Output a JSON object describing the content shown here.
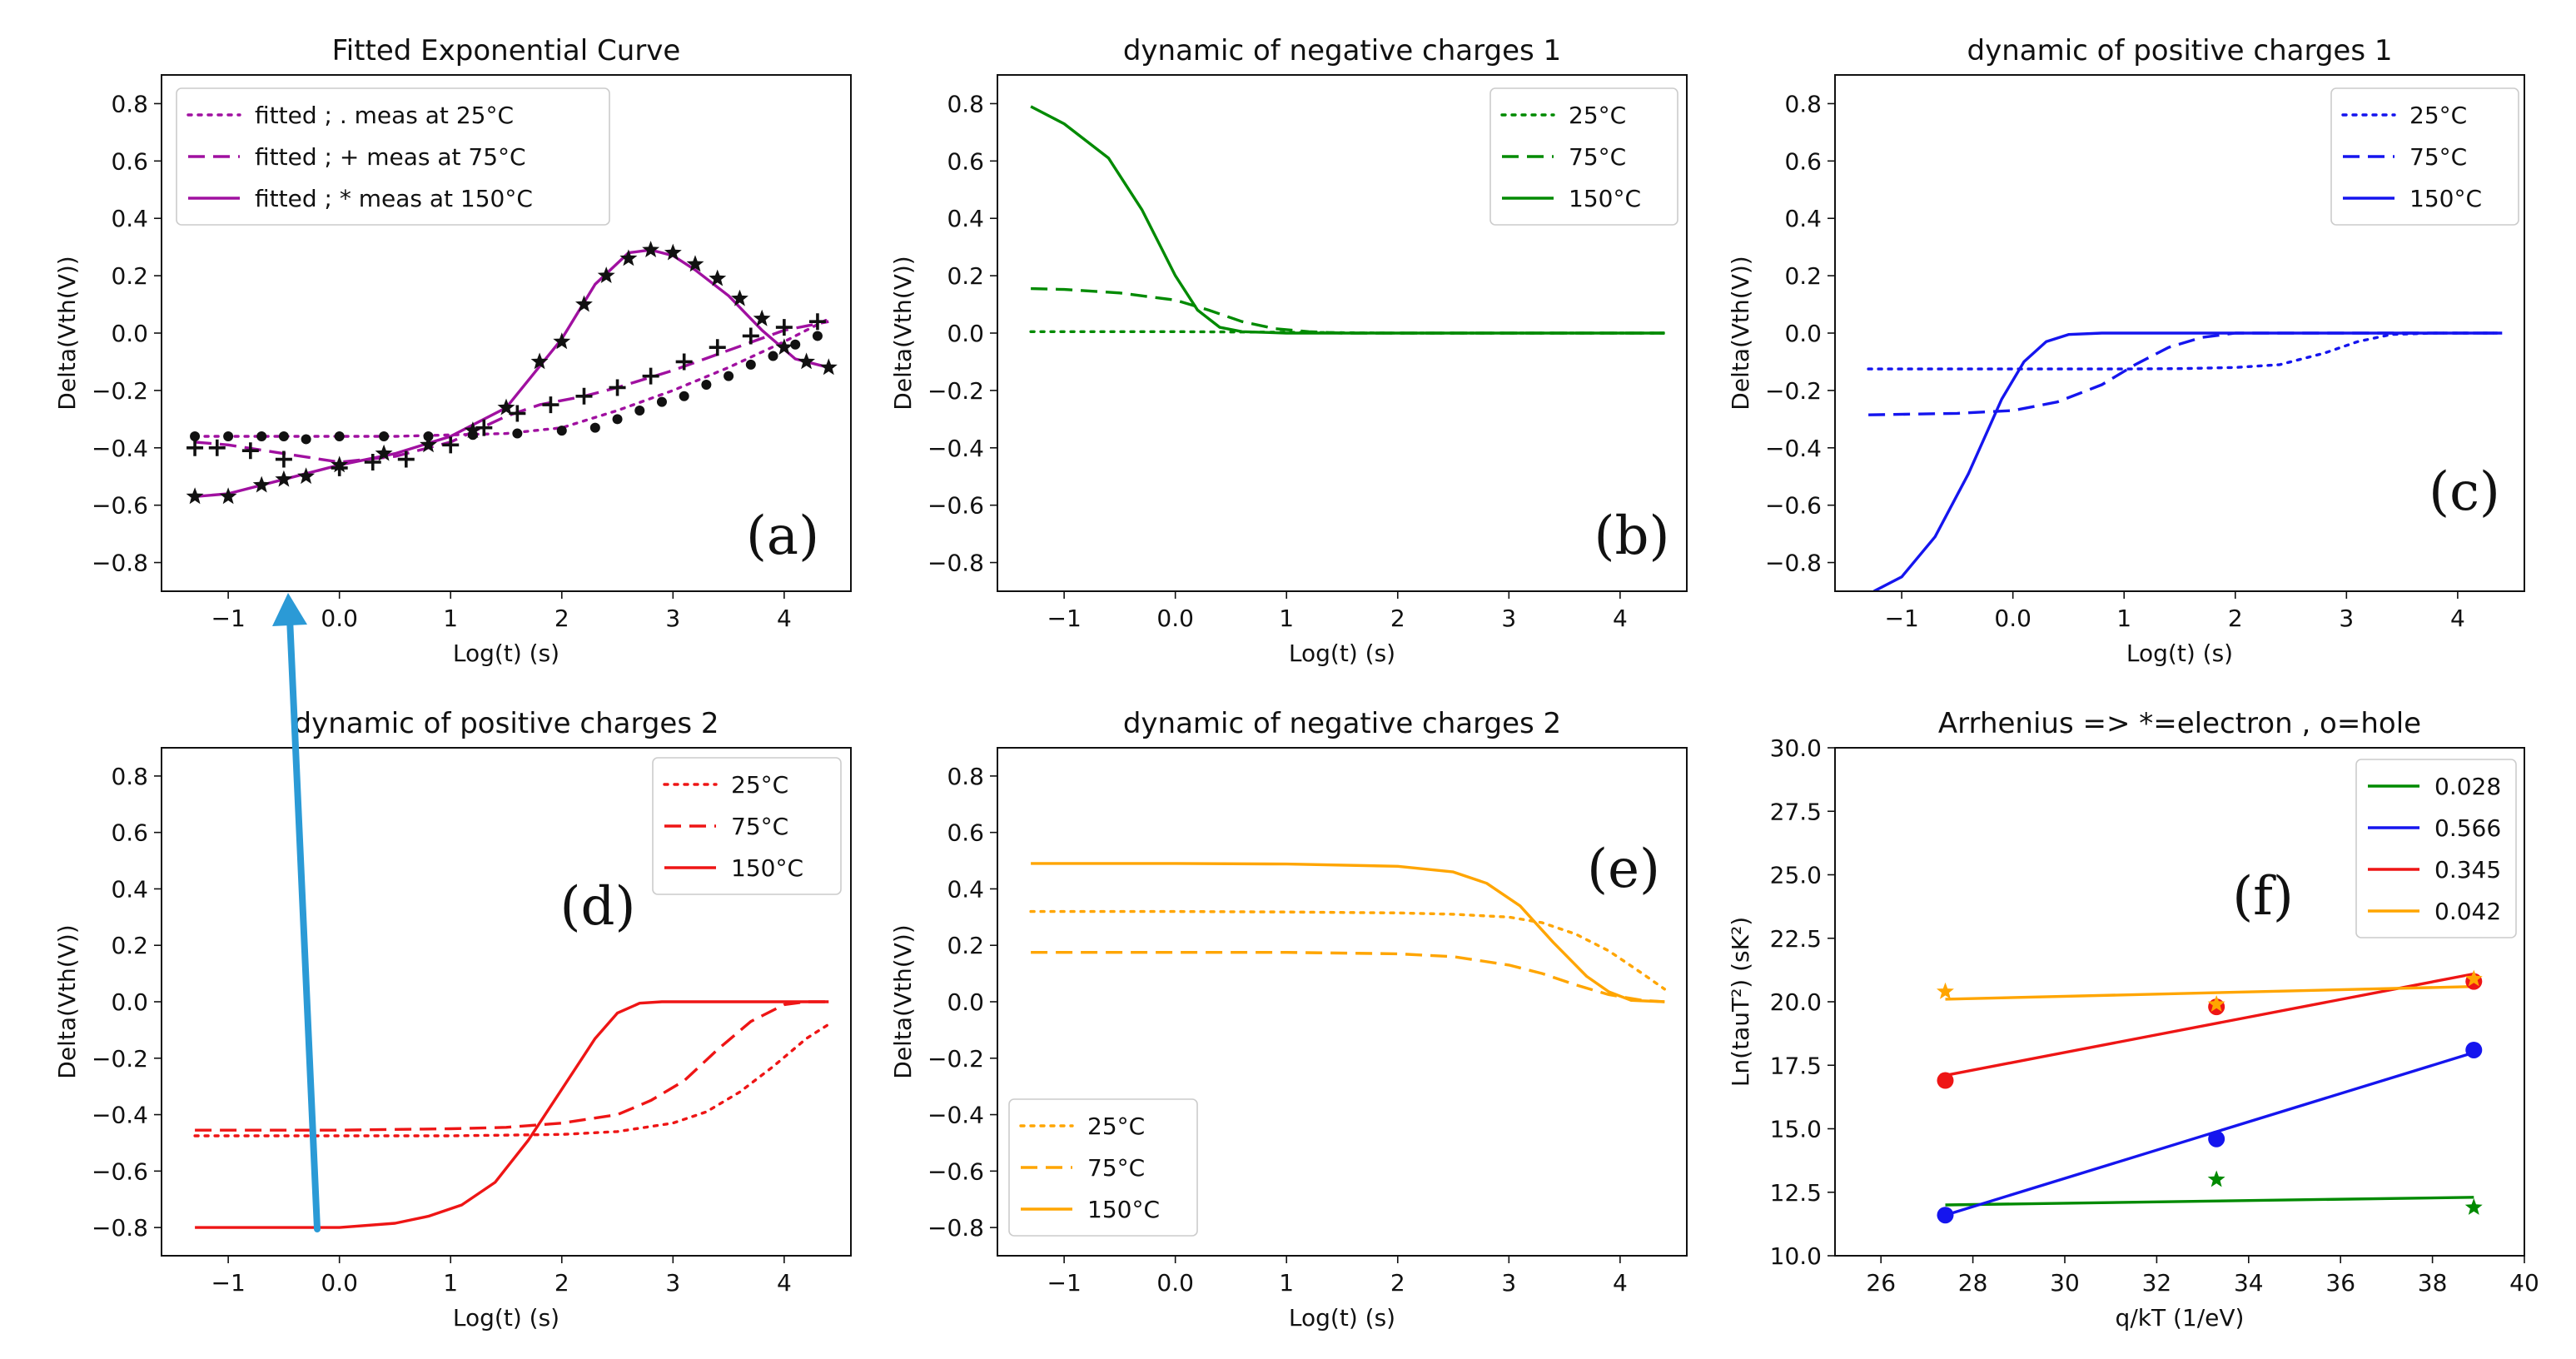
{
  "chart_data": [
    {
      "id": "a",
      "type": "line",
      "title": "Fitted Exponential Curve",
      "xlabel": "Log(t) (s)",
      "ylabel": "Delta(Vth(V))",
      "xlim": [
        -1.6,
        4.6
      ],
      "ylim": [
        -0.9,
        0.9
      ],
      "xticks": [
        -1,
        0,
        1,
        2,
        3,
        4
      ],
      "yticks": [
        -0.8,
        -0.6,
        -0.4,
        -0.2,
        0.0,
        0.2,
        0.4,
        0.6,
        0.8
      ],
      "panel_label": "(a)",
      "legend_position": "upper-left",
      "series": [
        {
          "name": "fitted ; . meas at 25°C",
          "color": "#a010a0",
          "dash": "dotted",
          "x": [
            -1.3,
            -1.0,
            -0.5,
            0.0,
            0.5,
            1.0,
            1.5,
            2.0,
            2.5,
            3.0,
            3.5,
            4.0,
            4.4
          ],
          "y": [
            -0.36,
            -0.36,
            -0.36,
            -0.36,
            -0.36,
            -0.355,
            -0.35,
            -0.33,
            -0.27,
            -0.2,
            -0.12,
            -0.03,
            0.05
          ]
        },
        {
          "name": "fitted ; + meas at 75°C",
          "color": "#a010a0",
          "dash": "dashed",
          "x": [
            -1.3,
            -1.0,
            -0.5,
            0.0,
            0.5,
            1.0,
            1.5,
            1.8,
            2.2,
            2.5,
            3.0,
            3.5,
            4.0,
            4.4
          ],
          "y": [
            -0.38,
            -0.39,
            -0.42,
            -0.45,
            -0.43,
            -0.38,
            -0.29,
            -0.25,
            -0.22,
            -0.19,
            -0.13,
            -0.06,
            0.01,
            0.04
          ]
        },
        {
          "name": "fitted ; * meas at 150°C",
          "color": "#a010a0",
          "dash": "solid",
          "x": [
            -1.3,
            -1.0,
            -0.5,
            0.0,
            0.5,
            1.0,
            1.5,
            2.0,
            2.3,
            2.6,
            2.8,
            3.0,
            3.2,
            3.5,
            3.8,
            4.1,
            4.4
          ],
          "y": [
            -0.57,
            -0.56,
            -0.51,
            -0.46,
            -0.42,
            -0.36,
            -0.26,
            -0.02,
            0.17,
            0.28,
            0.29,
            0.27,
            0.22,
            0.13,
            0.01,
            -0.09,
            -0.12
          ]
        }
      ],
      "markers": [
        {
          "symbol": "dot",
          "color": "#111111",
          "x": [
            -1.3,
            -1.0,
            -0.7,
            -0.5,
            -0.3,
            0.0,
            0.4,
            0.8,
            1.2,
            1.6,
            2.0,
            2.3,
            2.5,
            2.7,
            2.9,
            3.1,
            3.3,
            3.5,
            3.7,
            3.9,
            4.1,
            4.3
          ],
          "y": [
            -0.36,
            -0.36,
            -0.36,
            -0.36,
            -0.37,
            -0.36,
            -0.36,
            -0.36,
            -0.355,
            -0.35,
            -0.34,
            -0.33,
            -0.3,
            -0.27,
            -0.24,
            -0.22,
            -0.18,
            -0.15,
            -0.11,
            -0.08,
            -0.04,
            -0.01
          ]
        },
        {
          "symbol": "plus",
          "color": "#111111",
          "x": [
            -1.3,
            -1.1,
            -0.8,
            -0.5,
            0.0,
            0.3,
            0.6,
            1.0,
            1.3,
            1.6,
            1.9,
            2.2,
            2.5,
            2.8,
            3.1,
            3.4,
            3.7,
            4.0,
            4.3
          ],
          "y": [
            -0.4,
            -0.4,
            -0.41,
            -0.44,
            -0.47,
            -0.45,
            -0.44,
            -0.39,
            -0.33,
            -0.28,
            -0.25,
            -0.22,
            -0.19,
            -0.15,
            -0.1,
            -0.05,
            -0.01,
            0.02,
            0.04
          ]
        },
        {
          "symbol": "star",
          "color": "#111111",
          "x": [
            -1.3,
            -1.0,
            -0.7,
            -0.5,
            -0.3,
            0.0,
            0.4,
            0.8,
            1.2,
            1.5,
            1.8,
            2.0,
            2.2,
            2.4,
            2.6,
            2.8,
            3.0,
            3.2,
            3.4,
            3.6,
            3.8,
            4.0,
            4.2,
            4.4
          ],
          "y": [
            -0.57,
            -0.57,
            -0.53,
            -0.51,
            -0.5,
            -0.46,
            -0.42,
            -0.39,
            -0.34,
            -0.26,
            -0.1,
            -0.03,
            0.1,
            0.2,
            0.26,
            0.29,
            0.28,
            0.24,
            0.19,
            0.12,
            0.05,
            -0.05,
            -0.1,
            -0.12
          ]
        }
      ]
    },
    {
      "id": "b",
      "type": "line",
      "title": "dynamic of negative charges 1",
      "xlabel": "Log(t) (s)",
      "ylabel": "Delta(Vth(V))",
      "xlim": [
        -1.6,
        4.6
      ],
      "ylim": [
        -0.9,
        0.9
      ],
      "xticks": [
        -1,
        0,
        1,
        2,
        3,
        4
      ],
      "yticks": [
        -0.8,
        -0.6,
        -0.4,
        -0.2,
        0.0,
        0.2,
        0.4,
        0.6,
        0.8
      ],
      "panel_label": "(b)",
      "legend_position": "upper-right",
      "series": [
        {
          "name": "25°C",
          "color": "#008a00",
          "dash": "dotted",
          "x": [
            -1.3,
            0.0,
            1.0,
            2.0,
            3.0,
            4.4
          ],
          "y": [
            0.005,
            0.005,
            0.003,
            0.0,
            0.0,
            0.0
          ]
        },
        {
          "name": "75°C",
          "color": "#008a00",
          "dash": "dashed",
          "x": [
            -1.3,
            -1.0,
            -0.5,
            0.0,
            0.3,
            0.6,
            0.9,
            1.2,
            1.5,
            2.0,
            3.0,
            4.4
          ],
          "y": [
            0.155,
            0.152,
            0.14,
            0.115,
            0.08,
            0.04,
            0.015,
            0.005,
            0.0,
            0.0,
            0.0,
            0.0
          ]
        },
        {
          "name": "150°C",
          "color": "#008a00",
          "dash": "solid",
          "x": [
            -1.3,
            -1.0,
            -0.6,
            -0.3,
            0.0,
            0.2,
            0.4,
            0.6,
            1.0,
            2.0,
            3.0,
            4.4
          ],
          "y": [
            0.79,
            0.73,
            0.61,
            0.43,
            0.2,
            0.08,
            0.02,
            0.005,
            0.0,
            0.0,
            0.0,
            0.0
          ]
        }
      ]
    },
    {
      "id": "c",
      "type": "line",
      "title": "dynamic of positive charges 1",
      "xlabel": "Log(t) (s)",
      "ylabel": "Delta(Vth(V))",
      "xlim": [
        -1.6,
        4.6
      ],
      "ylim": [
        -0.9,
        0.9
      ],
      "xticks": [
        -1,
        0,
        1,
        2,
        3,
        4
      ],
      "yticks": [
        -0.8,
        -0.6,
        -0.4,
        -0.2,
        0.0,
        0.2,
        0.4,
        0.6,
        0.8
      ],
      "panel_label": "(c)",
      "legend_position": "upper-right",
      "series": [
        {
          "name": "25°C",
          "color": "#1515ee",
          "dash": "dotted",
          "x": [
            -1.3,
            0.0,
            1.0,
            1.5,
            2.0,
            2.4,
            2.8,
            3.1,
            3.4,
            3.8,
            4.4
          ],
          "y": [
            -0.125,
            -0.125,
            -0.125,
            -0.124,
            -0.12,
            -0.11,
            -0.07,
            -0.03,
            -0.005,
            0.0,
            0.0
          ]
        },
        {
          "name": "75°C",
          "color": "#1515ee",
          "dash": "dashed",
          "x": [
            -1.3,
            -0.5,
            0.0,
            0.4,
            0.8,
            1.1,
            1.4,
            1.7,
            2.0,
            2.5,
            4.4
          ],
          "y": [
            -0.285,
            -0.28,
            -0.27,
            -0.24,
            -0.18,
            -0.11,
            -0.05,
            -0.015,
            0.0,
            0.0,
            0.0
          ]
        },
        {
          "name": "150°C",
          "color": "#1515ee",
          "dash": "solid",
          "x": [
            -1.25,
            -1.0,
            -0.7,
            -0.4,
            -0.1,
            0.1,
            0.3,
            0.5,
            0.8,
            1.5,
            4.4
          ],
          "y": [
            -0.9,
            -0.85,
            -0.71,
            -0.49,
            -0.23,
            -0.1,
            -0.03,
            -0.005,
            0.0,
            0.0,
            0.0
          ]
        }
      ]
    },
    {
      "id": "d",
      "type": "line",
      "title": "dynamic of positive charges 2",
      "xlabel": "Log(t) (s)",
      "ylabel": "Delta(Vth(V))",
      "xlim": [
        -1.6,
        4.6
      ],
      "ylim": [
        -0.9,
        0.9
      ],
      "xticks": [
        -1,
        0,
        1,
        2,
        3,
        4
      ],
      "yticks": [
        -0.8,
        -0.6,
        -0.4,
        -0.2,
        0.0,
        0.2,
        0.4,
        0.6,
        0.8
      ],
      "panel_label": "(d)",
      "legend_position": "upper-right",
      "series": [
        {
          "name": "25°C",
          "color": "#ee1515",
          "dash": "dotted",
          "x": [
            -1.3,
            0.0,
            1.0,
            2.0,
            2.5,
            3.0,
            3.3,
            3.6,
            3.9,
            4.2,
            4.4
          ],
          "y": [
            -0.475,
            -0.475,
            -0.475,
            -0.47,
            -0.46,
            -0.43,
            -0.39,
            -0.32,
            -0.23,
            -0.13,
            -0.08
          ]
        },
        {
          "name": "75°C",
          "color": "#ee1515",
          "dash": "dashed",
          "x": [
            -1.3,
            0.0,
            1.0,
            1.5,
            2.0,
            2.5,
            2.8,
            3.1,
            3.4,
            3.7,
            4.0,
            4.2,
            4.4
          ],
          "y": [
            -0.455,
            -0.455,
            -0.45,
            -0.445,
            -0.43,
            -0.4,
            -0.35,
            -0.28,
            -0.17,
            -0.07,
            -0.01,
            0.0,
            0.0
          ]
        },
        {
          "name": "150°C",
          "color": "#ee1515",
          "dash": "solid",
          "x": [
            -1.3,
            0.0,
            0.5,
            0.8,
            1.1,
            1.4,
            1.7,
            2.0,
            2.3,
            2.5,
            2.7,
            2.9,
            3.2,
            4.4
          ],
          "y": [
            -0.8,
            -0.8,
            -0.785,
            -0.76,
            -0.72,
            -0.64,
            -0.49,
            -0.31,
            -0.13,
            -0.04,
            -0.005,
            0.0,
            0.0,
            0.0
          ]
        }
      ]
    },
    {
      "id": "e",
      "type": "line",
      "title": "dynamic of negative charges 2",
      "xlabel": "Log(t) (s)",
      "ylabel": "Delta(Vth(V))",
      "xlim": [
        -1.6,
        4.6
      ],
      "ylim": [
        -0.9,
        0.9
      ],
      "xticks": [
        -1,
        0,
        1,
        2,
        3,
        4
      ],
      "yticks": [
        -0.8,
        -0.6,
        -0.4,
        -0.2,
        0.0,
        0.2,
        0.4,
        0.6,
        0.8
      ],
      "panel_label": "(e)",
      "legend_position": "lower-left",
      "series": [
        {
          "name": "25°C",
          "color": "#ffa500",
          "dash": "dotted",
          "x": [
            -1.3,
            0.0,
            1.0,
            2.0,
            2.5,
            3.0,
            3.3,
            3.6,
            3.9,
            4.2,
            4.4
          ],
          "y": [
            0.32,
            0.32,
            0.318,
            0.315,
            0.31,
            0.3,
            0.28,
            0.24,
            0.18,
            0.1,
            0.045
          ]
        },
        {
          "name": "75°C",
          "color": "#ffa500",
          "dash": "dashed",
          "x": [
            -1.3,
            0.0,
            1.0,
            2.0,
            2.5,
            3.0,
            3.3,
            3.6,
            3.9,
            4.2,
            4.4
          ],
          "y": [
            0.175,
            0.175,
            0.175,
            0.17,
            0.16,
            0.13,
            0.1,
            0.06,
            0.025,
            0.005,
            0.0
          ]
        },
        {
          "name": "150°C",
          "color": "#ffa500",
          "dash": "solid",
          "x": [
            -1.3,
            0.0,
            1.0,
            2.0,
            2.5,
            2.8,
            3.1,
            3.4,
            3.7,
            3.9,
            4.1,
            4.4
          ],
          "y": [
            0.49,
            0.49,
            0.488,
            0.48,
            0.46,
            0.42,
            0.34,
            0.21,
            0.09,
            0.035,
            0.005,
            0.0
          ]
        }
      ]
    },
    {
      "id": "f",
      "type": "line",
      "title": "Arrhenius => *=electron , o=hole",
      "xlabel": "q/kT (1/eV)",
      "ylabel": "Ln(tauT²) (sK²)",
      "xlim": [
        25,
        40
      ],
      "ylim": [
        10.0,
        30.0
      ],
      "xticks": [
        26,
        28,
        30,
        32,
        34,
        36,
        38,
        40
      ],
      "yticks": [
        10.0,
        12.5,
        15.0,
        17.5,
        20.0,
        22.5,
        25.0,
        27.5,
        30.0
      ],
      "ytick_labels": [
        "10.0",
        "12.5",
        "15.0",
        "17.5",
        "20.0",
        "22.5",
        "25.0",
        "27.5",
        "30.0"
      ],
      "panel_label": "(f)",
      "legend_position": "upper-right",
      "series": [
        {
          "name": "0.028",
          "color": "#008a00",
          "dash": "solid",
          "x": [
            27.4,
            38.9
          ],
          "y": [
            12.0,
            12.3
          ]
        },
        {
          "name": "0.566",
          "color": "#1515ee",
          "dash": "solid",
          "x": [
            27.4,
            38.9
          ],
          "y": [
            11.6,
            18.0
          ]
        },
        {
          "name": "0.345",
          "color": "#ee1515",
          "dash": "solid",
          "x": [
            27.4,
            38.9
          ],
          "y": [
            17.1,
            21.1
          ]
        },
        {
          "name": "0.042",
          "color": "#ffa500",
          "dash": "solid",
          "x": [
            27.4,
            38.9
          ],
          "y": [
            20.1,
            20.6
          ]
        }
      ],
      "markers": [
        {
          "symbol": "star",
          "color": "#008a00",
          "x": [
            33.3,
            38.9
          ],
          "y": [
            13.0,
            11.9
          ]
        },
        {
          "symbol": "circle",
          "color": "#1515ee",
          "x": [
            27.4,
            33.3,
            38.9
          ],
          "y": [
            11.6,
            14.6,
            18.1
          ]
        },
        {
          "symbol": "circle",
          "color": "#ee1515",
          "x": [
            27.4,
            33.3,
            38.9
          ],
          "y": [
            16.9,
            19.8,
            20.8
          ]
        },
        {
          "symbol": "star",
          "color": "#ffa500",
          "x": [
            27.4,
            33.3,
            38.9
          ],
          "y": [
            20.4,
            19.9,
            20.9
          ]
        }
      ]
    }
  ],
  "annotation": {
    "type": "arrow",
    "color": "#2b9ad6",
    "description": "blue arrow pointing up from panel (d) curve to panel (a) x-axis"
  }
}
